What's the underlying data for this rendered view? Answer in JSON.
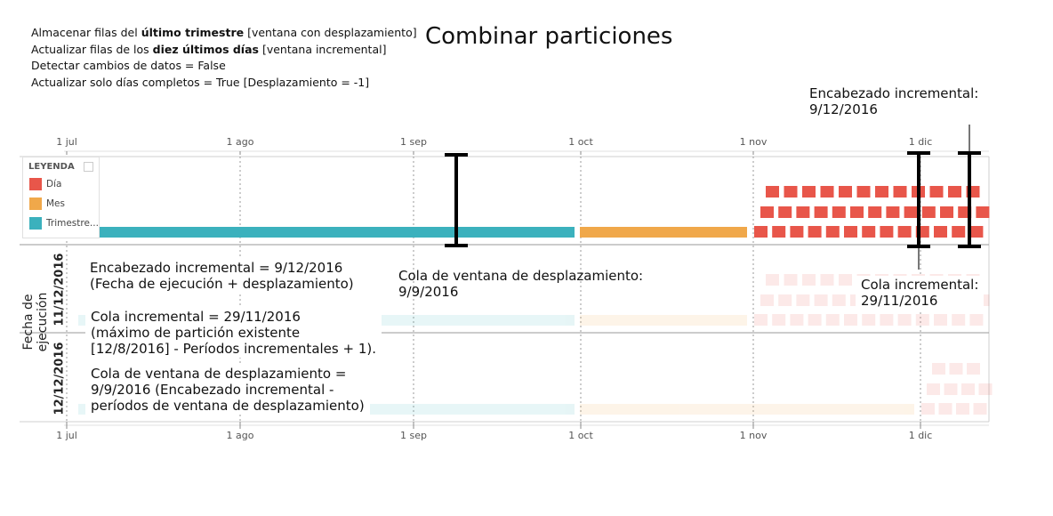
{
  "settings": {
    "line1_pre": "Almacenar filas del ",
    "line1_bold": "último trimestre",
    "line1_post": " [ventana con desplazamiento]",
    "line2_pre": "Actualizar filas de los ",
    "line2_bold": "diez últimos días",
    "line2_post": " [ventana incremental]",
    "line3": "Detectar cambios de datos = False",
    "line4": "Actualizar solo días completos = True [Desplazamiento = -1]"
  },
  "title": "Combinar particiones",
  "colors": {
    "dia": "#e8564a",
    "mes": "#f0a84a",
    "trimestre": "#3bb1bd"
  },
  "legend": {
    "header": "LEYENDA",
    "items": [
      {
        "label": "Día",
        "color": "#e8564a"
      },
      {
        "label": "Mes",
        "color": "#f0a84a"
      },
      {
        "label": "Trimestre...",
        "color": "#3bb1bd"
      }
    ]
  },
  "axis": {
    "ticks": [
      "1 jul",
      "1 ago",
      "1 sep",
      "1 oct",
      "1 nov",
      "1 dic"
    ]
  },
  "y_axis_label": "Fecha de ejecución",
  "rows": [
    "11/12/2016",
    "12/12/2016"
  ],
  "annotations": {
    "encabezado_top": "Encabezado incremental:\n9/12/2016",
    "encabezado_detail": "Encabezado incremental = 9/12/2016\n(Fecha de ejecución + desplazamiento)",
    "cola_ventana_top": "Cola de ventana de desplazamiento:\n9/9/2016",
    "cola_incremental_right": "Cola incremental:\n29/11/2016",
    "cola_incremental_detail": "Cola incremental = 29/11/2016\n(máximo de partición existente\n[12/8/2016] - Períodos incrementales + 1).",
    "cola_ventana_detail": "Cola de ventana de desplazamiento =\n9/9/2016 (Encabezado incremental -\nperíodos de ventana de desplazamiento)"
  }
}
